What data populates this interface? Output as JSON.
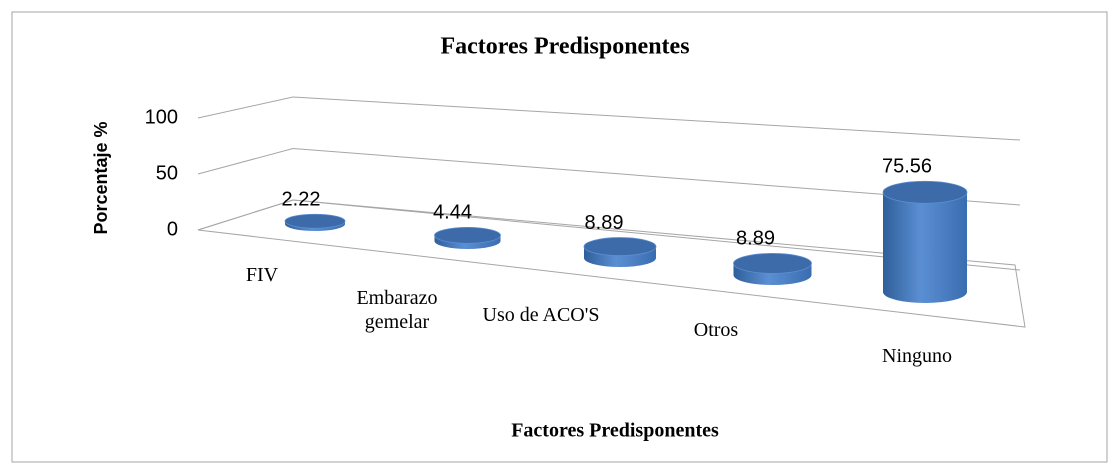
{
  "chart_data": {
    "type": "bar3d",
    "title": "Factores Predisponentes",
    "x_label": "Factores Predisponentes",
    "y_label": "Porcentaje %",
    "categories": [
      "FIV",
      "Embarazo gemelar",
      "Uso de ACO'S",
      "Otros",
      "Ninguno"
    ],
    "values": [
      2.22,
      4.44,
      8.89,
      8.89,
      75.56
    ],
    "color": "#4f81bd",
    "ylim": [
      0,
      100
    ],
    "yticks": [
      0,
      50,
      100
    ],
    "grid": true
  }
}
